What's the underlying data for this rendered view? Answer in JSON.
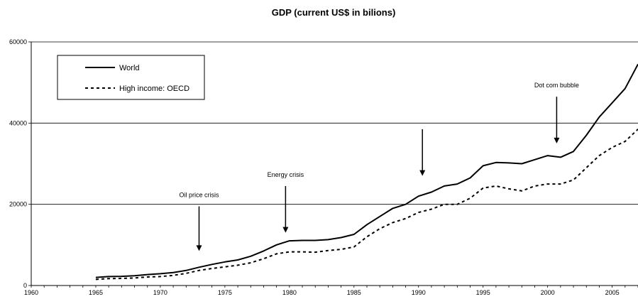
{
  "chart_data": {
    "type": "line",
    "title": "GDP (current US$ in bilions)",
    "xlabel": "",
    "ylabel": "",
    "xlim": [
      1960,
      2007
    ],
    "ylim": [
      0,
      60000
    ],
    "x_ticks": [
      1960,
      1965,
      1970,
      1975,
      1980,
      1985,
      1990,
      1995,
      2000,
      2005
    ],
    "y_ticks": [
      0,
      20000,
      40000,
      60000
    ],
    "grid": "horizontal",
    "legend_position": "top-left",
    "x": [
      1965,
      1966,
      1967,
      1968,
      1969,
      1970,
      1971,
      1972,
      1973,
      1974,
      1975,
      1976,
      1977,
      1978,
      1979,
      1980,
      1981,
      1982,
      1983,
      1984,
      1985,
      1986,
      1987,
      1988,
      1989,
      1990,
      1991,
      1992,
      1993,
      1994,
      1995,
      1996,
      1997,
      1998,
      1999,
      2000,
      2001,
      2002,
      2003,
      2004,
      2005,
      2006,
      2007
    ],
    "series": [
      {
        "name": "World",
        "style": "solid",
        "color": "#000000",
        "values": [
          2000,
          2200,
          2250,
          2400,
          2700,
          2900,
          3200,
          3700,
          4500,
          5200,
          5800,
          6300,
          7200,
          8500,
          10000,
          11000,
          11100,
          11100,
          11300,
          11800,
          12600,
          15000,
          17000,
          19000,
          20000,
          22000,
          23000,
          24500,
          25000,
          26500,
          29500,
          30300,
          30200,
          30000,
          31000,
          32000,
          31600,
          33000,
          37000,
          41500,
          45000,
          48500,
          54500
        ]
      },
      {
        "name": "High income: OECD",
        "style": "dashed",
        "color": "#000000",
        "values": [
          1500,
          1700,
          1750,
          1850,
          2100,
          2200,
          2500,
          3000,
          3700,
          4200,
          4600,
          5000,
          5600,
          6600,
          7800,
          8300,
          8300,
          8200,
          8600,
          8900,
          9500,
          12000,
          14000,
          15500,
          16500,
          18000,
          18800,
          20000,
          20000,
          21500,
          24000,
          24500,
          23800,
          23300,
          24500,
          25000,
          25000,
          26000,
          29000,
          32000,
          34000,
          35500,
          38500
        ]
      }
    ],
    "annotations": [
      {
        "text": "Oil price crisis",
        "x": 1973,
        "arrow_from": 19500,
        "arrow_to": 8500
      },
      {
        "text": "Energy crisis",
        "x": 1979.7,
        "arrow_from": 24500,
        "arrow_to": 13000
      },
      {
        "text": "",
        "x": 1990.3,
        "arrow_from": 38500,
        "arrow_to": 27000
      },
      {
        "text": "Dot com bubble",
        "x": 2000.7,
        "arrow_from": 46500,
        "arrow_to": 35000
      }
    ]
  }
}
